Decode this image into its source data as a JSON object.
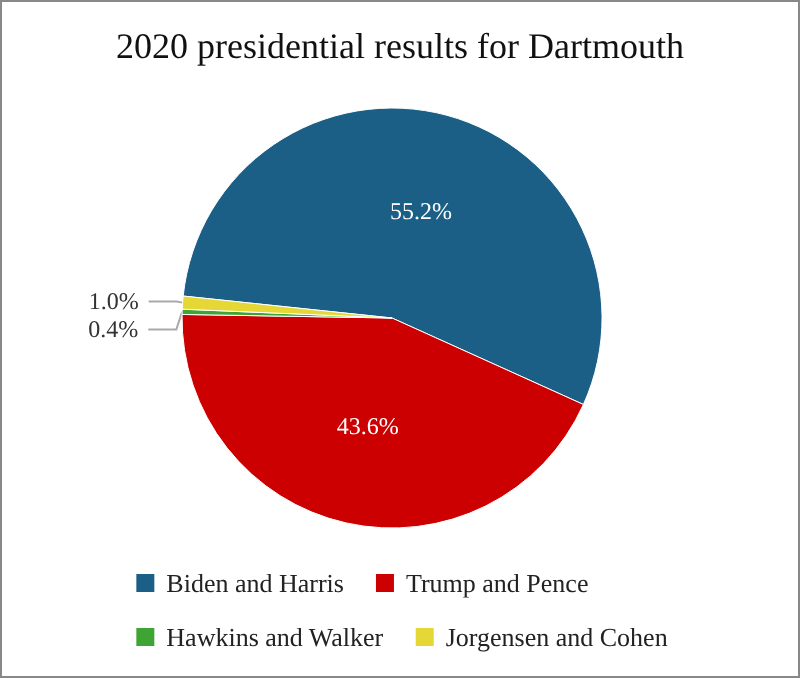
{
  "chart_data": {
    "type": "pie",
    "title": "2020 presidential results for Dartmouth",
    "categories": [
      "Biden and Harris",
      "Trump and Pence",
      "Hawkins and Walker",
      "Jorgensen and Cohen"
    ],
    "values": [
      55.2,
      43.6,
      0.4,
      1.0
    ],
    "colors": [
      "#1b5f86",
      "#cc0000",
      "#3ea535",
      "#e5d735"
    ],
    "value_labels": [
      "55.2%",
      "43.6%",
      "0.4%",
      "1.0%"
    ],
    "legend": "bottom"
  }
}
